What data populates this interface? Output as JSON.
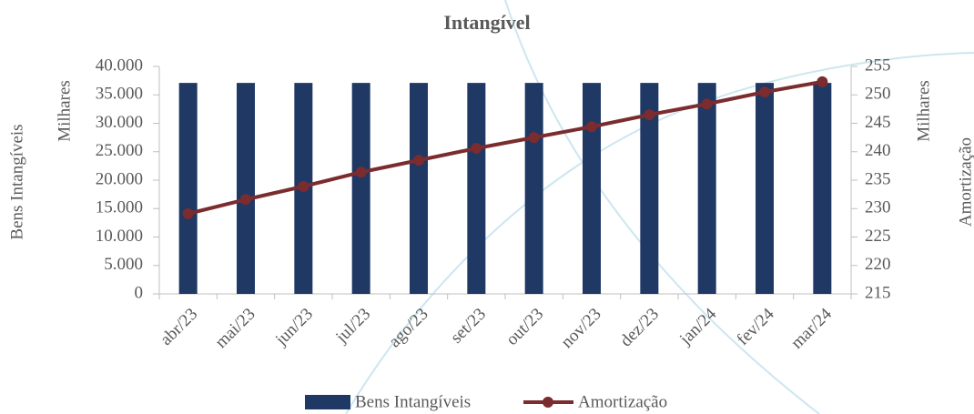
{
  "chart_data": {
    "type": "bar-line",
    "title": "Intangível",
    "y_label": "Bens Intangíveis",
    "y_unit_label": "Milhares",
    "y2_label": "Amortização",
    "y2_unit_label": "Milhares",
    "categories": [
      "abr/23",
      "mai/23",
      "jun/23",
      "jul/23",
      "ago/23",
      "set/23",
      "out/23",
      "nov/23",
      "dez/23",
      "jan/24",
      "fev/24",
      "mar/24"
    ],
    "series": [
      {
        "name": "Bens Intangíveis",
        "type": "bar",
        "color": "#1f3864",
        "values": [
          37100,
          37100,
          37100,
          37100,
          37100,
          37100,
          37100,
          37100,
          37100,
          37100,
          37100,
          37100
        ]
      },
      {
        "name": "Amortização",
        "type": "line",
        "axis": "y2",
        "color": "#7b2c2f",
        "values": [
          229.1,
          231.6,
          233.9,
          236.4,
          238.5,
          240.6,
          242.5,
          244.4,
          246.5,
          248.4,
          250.5,
          252.3
        ]
      }
    ],
    "ylim": [
      0,
      40000
    ],
    "yticks": [
      0,
      {
        "value": 5000,
        "label": "5.000"
      },
      {
        "value": 10000,
        "label": "10.000"
      },
      {
        "value": 15000,
        "label": "15.000"
      },
      {
        "value": 20000,
        "label": "20.000"
      },
      {
        "value": 25000,
        "label": "25.000"
      },
      {
        "value": 30000,
        "label": "30.000"
      },
      {
        "value": 35000,
        "label": "35.000"
      },
      {
        "value": 40000,
        "label": "40.000"
      }
    ],
    "y2lim": [
      215,
      255
    ],
    "y2ticks": [
      215,
      220,
      225,
      230,
      235,
      240,
      245,
      250,
      255
    ],
    "legend": "bottom"
  }
}
